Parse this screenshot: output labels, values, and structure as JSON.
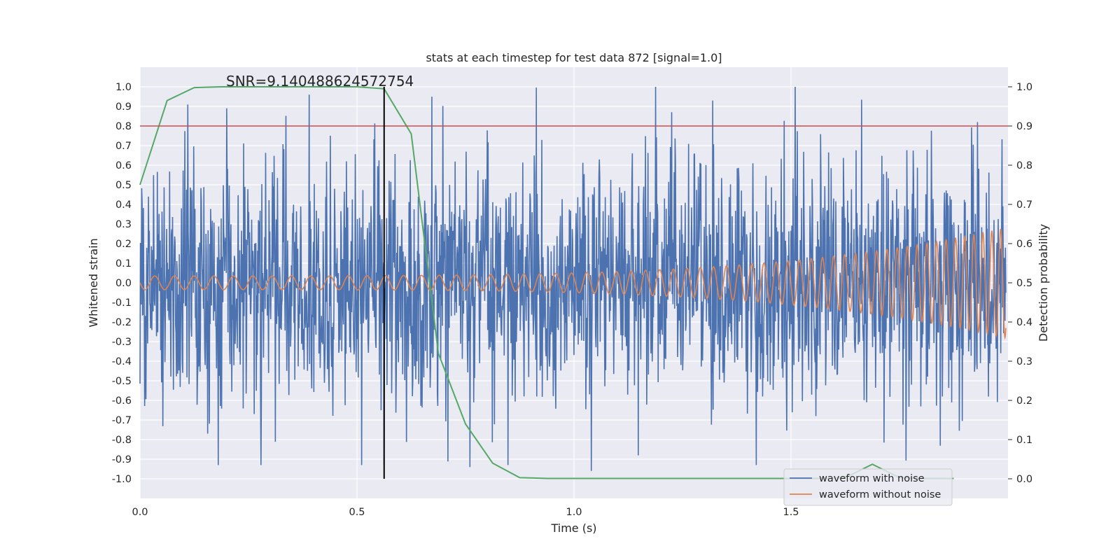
{
  "chart_data": {
    "type": "line",
    "title": "stats at each timestep for test data 872 [signal=1.0]",
    "annotation": "SNR=9.140488624572754",
    "xlabel": "Time (s)",
    "ylabel": "Whitened strain",
    "y2label": "Detection probability",
    "xlim": [
      0.0,
      2.0
    ],
    "ylim": [
      -1.1,
      1.1
    ],
    "y2lim": [
      -0.05,
      1.05
    ],
    "xticks": [
      "0.0",
      "0.5",
      "1.0",
      "1.5"
    ],
    "yticks": [
      "1.0",
      "0.9",
      "0.8",
      "0.7",
      "0.6",
      "0.5",
      "0.4",
      "0.3",
      "0.2",
      "0.1",
      "0.0",
      "-0.1",
      "-0.2",
      "-0.3",
      "-0.4",
      "-0.5",
      "-0.6",
      "-0.7",
      "-0.8",
      "-0.9",
      "-1.0"
    ],
    "y2ticks": [
      "1.0",
      "0.9",
      "0.8",
      "0.7",
      "0.6",
      "0.5",
      "0.4",
      "0.3",
      "0.2",
      "0.1",
      "0.0"
    ],
    "grid": true,
    "legend_position": "lower-right",
    "series": [
      {
        "name": "waveform with noise",
        "axis": "left",
        "color": "#4c72b0",
        "description": "noisy whitened strain",
        "points": 2048,
        "approx_range": [
          -0.93,
          1.0
        ],
        "approx_std": 0.3,
        "notable_peaks": [
          {
            "x": 0.39,
            "y": 0.96
          },
          {
            "x": 1.32,
            "y": 0.93
          },
          {
            "x": 1.51,
            "y": 1.0
          },
          {
            "x": 0.11,
            "y": 0.91
          },
          {
            "x": 0.2,
            "y": 0.89
          },
          {
            "x": 1.42,
            "y": -0.93
          },
          {
            "x": 1.04,
            "y": -0.96
          },
          {
            "x": 0.76,
            "y": -0.94
          }
        ]
      },
      {
        "name": "waveform without noise",
        "axis": "left",
        "color": "#dd8452",
        "description": "chirp signal, amplitude grows from ~0.04 to ~0.28, frequency rises toward the end",
        "start_amplitude": 0.035,
        "end_amplitude": 0.28
      },
      {
        "name": "detection probability",
        "axis": "right",
        "color": "#55a868",
        "x": [
          0.0,
          0.0625,
          0.125,
          0.1875,
          0.25,
          0.3125,
          0.375,
          0.4375,
          0.5,
          0.5625,
          0.625,
          0.6875,
          0.75,
          0.8125,
          0.875,
          0.9375,
          1.0,
          1.0625,
          1.125,
          1.1875,
          1.25,
          1.3125,
          1.375,
          1.4375,
          1.5,
          1.5625,
          1.625,
          1.6875,
          1.75,
          1.8125,
          1.875
        ],
        "y": [
          0.75,
          0.965,
          0.998,
          1.0,
          1.0,
          1.0,
          1.0,
          1.0,
          1.0,
          0.995,
          0.88,
          0.32,
          0.14,
          0.04,
          0.003,
          0.001,
          0.001,
          0.001,
          0.001,
          0.001,
          0.001,
          0.001,
          0.001,
          0.001,
          0.001,
          0.001,
          0.003,
          0.037,
          0.003,
          0.001,
          0.001
        ]
      },
      {
        "name": "threshold",
        "axis": "right",
        "color": "#c44e52",
        "type": "hline",
        "y": 0.9
      },
      {
        "name": "marker",
        "axis": "left",
        "color": "#000000",
        "type": "vline",
        "x": 0.5625
      }
    ]
  }
}
